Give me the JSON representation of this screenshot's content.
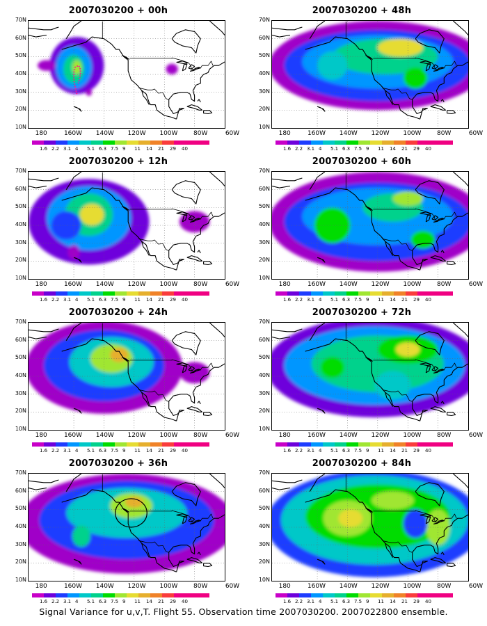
{
  "panels": [
    {
      "title": "2007030200 + 00h"
    },
    {
      "title": "2007030200 + 48h"
    },
    {
      "title": "2007030200 + 12h"
    },
    {
      "title": "2007030200 + 60h"
    },
    {
      "title": "2007030200 + 24h"
    },
    {
      "title": "2007030200 + 72h"
    },
    {
      "title": "2007030200 + 36h"
    },
    {
      "title": "2007030200 + 84h"
    }
  ],
  "lat_labels": [
    "70N",
    "60N",
    "50N",
    "40N",
    "30N",
    "20N",
    "10N"
  ],
  "lon_labels": [
    "180",
    "160W",
    "140W",
    "120W",
    "100W",
    "80W",
    "60W"
  ],
  "colorbar": {
    "levels": [
      "1.6",
      "2.2",
      "3.1",
      "4",
      "5.1",
      "6.3",
      "7.5",
      "9",
      "11",
      "14",
      "21",
      "29",
      "40"
    ],
    "colors": [
      "#a000c8",
      "#6e00dc",
      "#1e3cff",
      "#0096ff",
      "#00c8c8",
      "#00d28c",
      "#00dc00",
      "#a0e632",
      "#e6dc32",
      "#e6af2d",
      "#f08228",
      "#fa3c3c",
      "#f00082"
    ]
  },
  "caption": "Signal Variance for u,v,T. Flight 55. Observation time 2007030200. 2007022800 ensemble."
}
